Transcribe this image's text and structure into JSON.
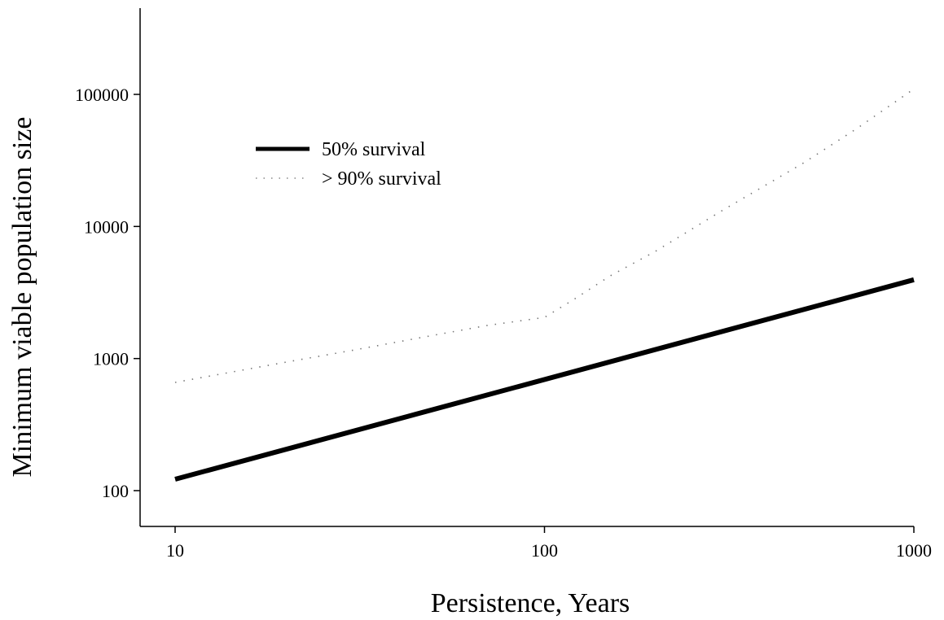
{
  "chart_data": {
    "type": "line",
    "title": "",
    "xlabel": "Persistence, Years",
    "ylabel": "Minimum viable population size",
    "x_scale": "log",
    "y_scale": "log",
    "xlim": [
      8.5,
      1000
    ],
    "ylim": [
      55,
      400000
    ],
    "x_ticks": [
      10,
      100,
      1000
    ],
    "x_tick_labels": [
      "10",
      "100",
      "1000"
    ],
    "y_ticks": [
      100,
      1000,
      10000,
      100000
    ],
    "y_tick_labels": [
      "100",
      "1000",
      "10000",
      "100000"
    ],
    "grid": false,
    "legend_position": "top-left",
    "series": [
      {
        "name": "50% survival",
        "style": "solid-thick",
        "color": "#000000",
        "x": [
          10,
          1000
        ],
        "y": [
          122,
          3950
        ]
      },
      {
        "name": "> 90% survival",
        "style": "dotted",
        "color": "#777777",
        "x": [
          10,
          20,
          30,
          50,
          70,
          100,
          120,
          150,
          200,
          300,
          500,
          700,
          1000
        ],
        "y": [
          660,
          940,
          1150,
          1500,
          1780,
          2050,
          2800,
          4200,
          6500,
          13000,
          30000,
          55000,
          110000
        ]
      }
    ]
  }
}
